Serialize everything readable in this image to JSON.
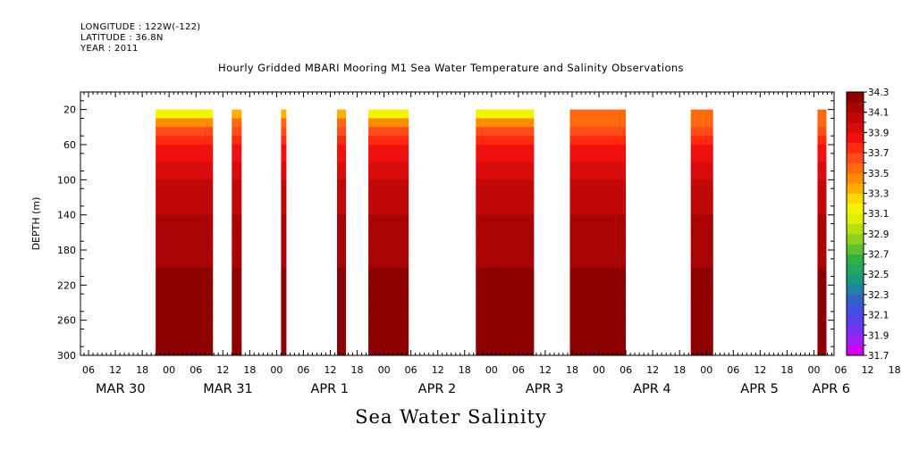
{
  "header": {
    "longitude": "LONGITUDE : 122W(-122)",
    "latitude": "LATITUDE : 36.8N",
    "year": "YEAR : 2011"
  },
  "title": "Hourly Gridded MBARI Mooring M1 Sea Water Temperature and Salinity Observations",
  "variable_label": "Sea Water Salinity",
  "chart_data": {
    "type": "heatmap",
    "title": "Hourly Gridded MBARI Mooring M1 Sea Water Temperature and Salinity Observations",
    "xlabel": "",
    "ylabel": "DEPTH (m)",
    "x_units": "hours since 2011-03-30 00:00",
    "xlim": [
      4.2,
      172.5
    ],
    "ylim": [
      300,
      0
    ],
    "y_ticks": [
      20,
      60,
      100,
      140,
      180,
      220,
      260,
      300
    ],
    "x_hour_ticks": [
      "06",
      "12",
      "18",
      "00",
      "06",
      "12",
      "18",
      "00",
      "06",
      "12",
      "18",
      "00",
      "06",
      "12",
      "18",
      "00",
      "06",
      "12",
      "18",
      "00",
      "06",
      "12",
      "18",
      "00",
      "06",
      "12",
      "18",
      "00",
      "06",
      "12",
      "18",
      "00"
    ],
    "date_labels": [
      {
        "text": "MAR 30",
        "hour": 6
      },
      {
        "text": "MAR 31",
        "hour": 30
      },
      {
        "text": "APR  1",
        "hour": 54
      },
      {
        "text": "APR  2",
        "hour": 78
      },
      {
        "text": "APR  3",
        "hour": 102
      },
      {
        "text": "APR  4",
        "hour": 126
      },
      {
        "text": "APR  5",
        "hour": 150
      },
      {
        "text": "APR  6",
        "hour": 166
      }
    ],
    "depth_profile": {
      "depth": [
        20,
        30,
        40,
        50,
        60,
        70,
        80,
        90,
        100,
        120,
        140,
        160,
        180,
        200,
        220,
        240,
        260,
        280,
        300
      ],
      "salinity": [
        33.3,
        33.5,
        33.6,
        33.7,
        33.8,
        33.85,
        33.9,
        33.95,
        34.0,
        34.0,
        34.1,
        34.15,
        34.15,
        34.2,
        34.2,
        34.3,
        34.3,
        34.3,
        34.2
      ]
    },
    "data_segments": [
      {
        "start_hour": 21.0,
        "end_hour": 33.8,
        "surface_salinity": 33.1
      },
      {
        "start_hour": 38.0,
        "end_hour": 40.2,
        "surface_salinity": 33.3
      },
      {
        "start_hour": 49.0,
        "end_hour": 50.2,
        "surface_salinity": 33.3
      },
      {
        "start_hour": 61.5,
        "end_hour": 63.5,
        "surface_salinity": 33.3
      },
      {
        "start_hour": 68.5,
        "end_hour": 77.5,
        "surface_salinity": 33.1
      },
      {
        "start_hour": 92.5,
        "end_hour": 105.5,
        "surface_salinity": 33.1
      },
      {
        "start_hour": 113.5,
        "end_hour": 126.0,
        "surface_salinity": 33.5
      },
      {
        "start_hour": 140.5,
        "end_hour": 145.5,
        "surface_salinity": 33.5
      },
      {
        "start_hour": 168.8,
        "end_hour": 170.8,
        "surface_salinity": 33.5
      }
    ],
    "colorbar": {
      "levels": [
        31.7,
        31.8,
        31.9,
        32.0,
        32.1,
        32.2,
        32.3,
        32.4,
        32.5,
        32.6,
        32.7,
        32.8,
        32.9,
        33.0,
        33.1,
        33.2,
        33.3,
        33.4,
        33.5,
        33.6,
        33.7,
        33.8,
        33.9,
        34.0,
        34.1,
        34.2,
        34.3
      ],
      "labels": [
        "34.3",
        "34.1",
        "33.9",
        "33.7",
        "33.5",
        "33.3",
        "33.1",
        "32.9",
        "32.7",
        "32.5",
        "32.3",
        "32.1",
        "31.9",
        "31.7"
      ],
      "colors": [
        "#d000f0",
        "#a020f0",
        "#7a30f0",
        "#5a40e8",
        "#4050e0",
        "#3060c8",
        "#2080a8",
        "#1c9880",
        "#20a860",
        "#30b040",
        "#60c030",
        "#90d020",
        "#b8e010",
        "#dcf000",
        "#f4f400",
        "#ffd800",
        "#ffb000",
        "#ff8c00",
        "#ff6a10",
        "#ff4c18",
        "#ff2a10",
        "#f01010",
        "#d80c0c",
        "#c00808",
        "#a80404",
        "#8c0000"
      ]
    }
  }
}
